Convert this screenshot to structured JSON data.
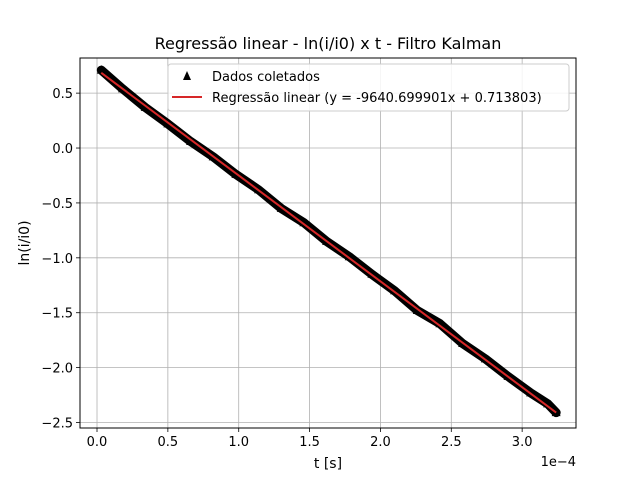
{
  "chart_data": {
    "type": "scatter",
    "title": "Regressão linear - ln(i/i0) x t - Filtro Kalman",
    "xlabel": "t [s]",
    "ylabel": "ln(i/i0)",
    "x_offset_label": "1e−4",
    "x_scale": 0.0001,
    "xlim": [
      -1.2e-05,
      0.000338
    ],
    "ylim": [
      -2.55,
      0.82
    ],
    "x_ticks": [
      0,
      5e-05,
      0.0001,
      0.00015,
      0.0002,
      0.00025,
      0.0003
    ],
    "x_tick_labels": [
      "0.0",
      "0.5",
      "1.0",
      "1.5",
      "2.0",
      "2.5",
      "3.0"
    ],
    "y_ticks": [
      0.5,
      0,
      -0.5,
      -1,
      -1.5,
      -2,
      -2.5
    ],
    "y_tick_labels": [
      "0.5",
      "0.0",
      "−0.5",
      "−1.0",
      "−1.5",
      "−2.0",
      "−2.5"
    ],
    "grid": true,
    "legend_position": "top-right",
    "series": [
      {
        "name": "Dados coletados",
        "kind": "scatter",
        "marker": "triangle-up",
        "color": "#000000",
        "x": [
          3e-06,
          1.8e-05,
          3.4e-05,
          5e-05,
          6.6e-05,
          8.2e-05,
          9.8e-05,
          0.000114,
          0.00013,
          0.000146,
          0.000162,
          0.000178,
          0.000194,
          0.00021,
          0.000226,
          0.000242,
          0.000258,
          0.000274,
          0.00029,
          0.000306,
          0.000318,
          0.000324
        ],
        "y": [
          0.71,
          0.54,
          0.37,
          0.22,
          0.06,
          -0.08,
          -0.24,
          -0.38,
          -0.55,
          -0.68,
          -0.85,
          -0.99,
          -1.15,
          -1.3,
          -1.48,
          -1.6,
          -1.78,
          -1.92,
          -2.08,
          -2.23,
          -2.33,
          -2.41
        ]
      },
      {
        "name": "Regressão linear (y = -9640.699901x + 0.713803)",
        "kind": "line",
        "color": "#d62728",
        "slope": -9640.699901,
        "intercept": 0.713803,
        "x_range": [
          3e-06,
          0.000324
        ]
      }
    ]
  }
}
